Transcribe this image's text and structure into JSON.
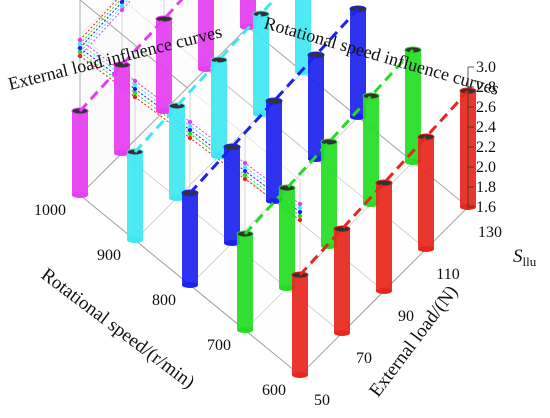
{
  "chart_data": {
    "type": "bar",
    "subtype": "3d-cylinder-bar",
    "x_axis": {
      "label": "External load/(N)",
      "ticks": [
        "50",
        "70",
        "90",
        "110",
        "130"
      ]
    },
    "y_axis": {
      "label": "Rotational speed/(r/min)",
      "ticks": [
        "600",
        "700",
        "800",
        "900",
        "1000"
      ]
    },
    "z_axis": {
      "label_main": "S",
      "label_sub": "llu",
      "ticks": [
        "1.6",
        "1.8",
        "2.0",
        "2.2",
        "2.4",
        "2.6",
        "2.8",
        "3.0"
      ],
      "zlim": [
        1.6,
        3.0
      ]
    },
    "annotations": {
      "left_wall": "External load influence curves",
      "back_wall": "Rotational speed influence curves"
    },
    "series_colors": [
      "#e8261c",
      "#22dd22",
      "#1c22ee",
      "#3ee8f2",
      "#e53df0"
    ],
    "x_values": [
      50,
      70,
      90,
      110,
      130
    ],
    "speed_values": [
      600,
      700,
      800,
      900,
      1000
    ],
    "values": [
      [
        2.6,
        2.64,
        2.68,
        2.72,
        2.76
      ],
      [
        2.56,
        2.6,
        2.64,
        2.68,
        2.72
      ],
      [
        2.52,
        2.56,
        2.6,
        2.64,
        2.68
      ],
      [
        2.48,
        2.52,
        2.56,
        2.6,
        2.64
      ],
      [
        2.44,
        2.48,
        2.52,
        2.56,
        2.6
      ]
    ],
    "grid": true
  }
}
